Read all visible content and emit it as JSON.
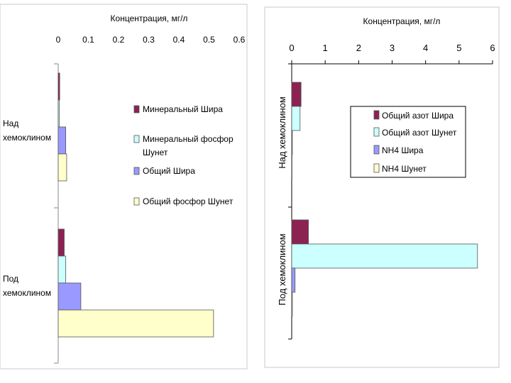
{
  "chart_data": [
    {
      "type": "bar",
      "orientation": "horizontal",
      "title": "Концентрация, мг/л",
      "xlabel": "Концентрация, мг/л",
      "xlim": [
        0,
        0.6
      ],
      "ticks": [
        "0",
        "0.1",
        "0.2",
        "0.3",
        "0.4",
        "0.5",
        "0.6"
      ],
      "tick_values": [
        0,
        0.1,
        0.2,
        0.3,
        0.4,
        0.5,
        0.6
      ],
      "categories": [
        "Над хемоклином",
        "Под хемоклином"
      ],
      "category_lines": [
        [
          "Над",
          "хемоклином"
        ],
        [
          "Под",
          "хемоклином"
        ]
      ],
      "series": [
        {
          "name": "Минеральный Шира",
          "color": "#8b2252",
          "values": [
            0.005,
            0.02
          ]
        },
        {
          "name": "Минеральный фосфор Шунет",
          "color": "#ccffff",
          "values": [
            0.004,
            0.025
          ]
        },
        {
          "name": "Общий Шира",
          "color": "#9999ff",
          "values": [
            0.025,
            0.075
          ]
        },
        {
          "name": "Общий фосфор Шунет",
          "color": "#ffffcc",
          "values": [
            0.028,
            0.515
          ]
        }
      ],
      "legend_lines": [
        [
          "Минеральный Шира"
        ],
        [
          "Минеральный фосфор",
          "Шунет"
        ],
        [
          "Общий Шира"
        ],
        [
          "Общий фосфор Шунет"
        ]
      ],
      "legend_position": "right"
    },
    {
      "type": "bar",
      "orientation": "horizontal",
      "title": "Концентрация, мг/л",
      "xlabel": "Концентрация, мг/л",
      "xlim": [
        0,
        6
      ],
      "ticks": [
        "0",
        "1",
        "2",
        "3",
        "4",
        "5",
        "6"
      ],
      "tick_values": [
        0,
        1,
        2,
        3,
        4,
        5,
        6
      ],
      "categories": [
        "Над хемоклином",
        "Под хемоклином"
      ],
      "series": [
        {
          "name": "Общий азот Шира",
          "color": "#8b2252",
          "values": [
            0.28,
            0.5
          ]
        },
        {
          "name": "Общий азот Шунет",
          "color": "#ccffff",
          "values": [
            0.25,
            5.55
          ]
        },
        {
          "name": "NH4 Шира",
          "color": "#9999ff",
          "values": [
            0.02,
            0.1
          ]
        },
        {
          "name": "NH4 Шунет",
          "color": "#ffffcc",
          "values": [
            0.01,
            0.02
          ]
        }
      ],
      "legend_position": "center"
    }
  ]
}
